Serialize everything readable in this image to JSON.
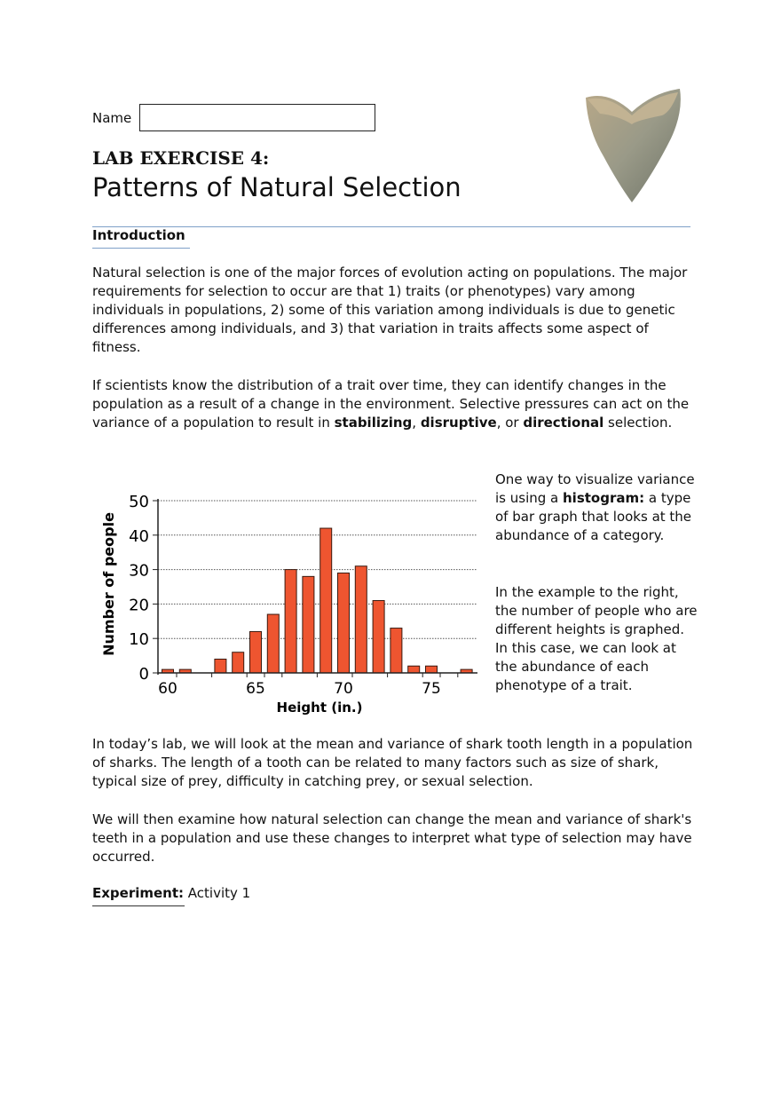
{
  "header": {
    "name_label": "Name",
    "name_value": "",
    "lab_title": "LAB EXERCISE 4:",
    "subtitle": "Patterns of Natural Selection",
    "image": "shark-tooth"
  },
  "intro": {
    "heading": "Introduction",
    "p1": "Natural selection is one of the major forces of evolution acting on populations. The major requirements for selection to occur are that 1) traits (or phenotypes) vary among individuals in populations, 2) some of this variation among individuals is due to genetic differences among individuals, and 3) that variation in traits affects some aspect of fitness.",
    "p2_a": "If scientists know the distribution of a trait over time, they can identify changes in the population as a result of a change in the environment. Selective pressures can act on the variance of a population to result in ",
    "p2_b1": "stabilizing",
    "p2_c": ", ",
    "p2_b2": "disruptive",
    "p2_d": ", or ",
    "p2_b3": "directional",
    "p2_e": " selection."
  },
  "side": {
    "s1_a": "One way to visualize variance is using a ",
    "s1_b": "histogram:",
    "s1_c": " a type of bar graph that looks at the abundance of a category.",
    "s2": "In the example to the right, the number of people who are different heights is graphed. In this case, we can look at the abundance of each phenotype of a trait."
  },
  "chart_data": {
    "type": "bar",
    "xlabel": "Height (in.)",
    "ylabel": "Number of people",
    "x": [
      60,
      61,
      62,
      63,
      64,
      65,
      66,
      67,
      68,
      69,
      70,
      71,
      72,
      73,
      74,
      75,
      76,
      77
    ],
    "values": [
      1,
      1,
      0,
      4,
      6,
      12,
      17,
      30,
      28,
      42,
      29,
      31,
      21,
      13,
      2,
      2,
      0,
      1
    ],
    "ylim": [
      0,
      50
    ],
    "yticks": [
      "0",
      "10",
      "20",
      "30",
      "40",
      "50"
    ],
    "xticks": [
      "60",
      "65",
      "70",
      "75"
    ],
    "grid": "horizontal dotted",
    "bar_color": "#ee5530"
  },
  "body": {
    "p3": "In today’s lab, we will look at the mean and variance of shark tooth length in a population of sharks. The length of a tooth can be related to many factors such as size of shark, typical size of prey, difficulty in catching prey, or sexual selection.",
    "p4": "We will then examine how natural selection can change the mean and variance of shark's teeth in a population and use these changes to interpret what type of selection may have occurred.",
    "exp_label": "Experiment:",
    "exp_value": " Activity 1"
  }
}
